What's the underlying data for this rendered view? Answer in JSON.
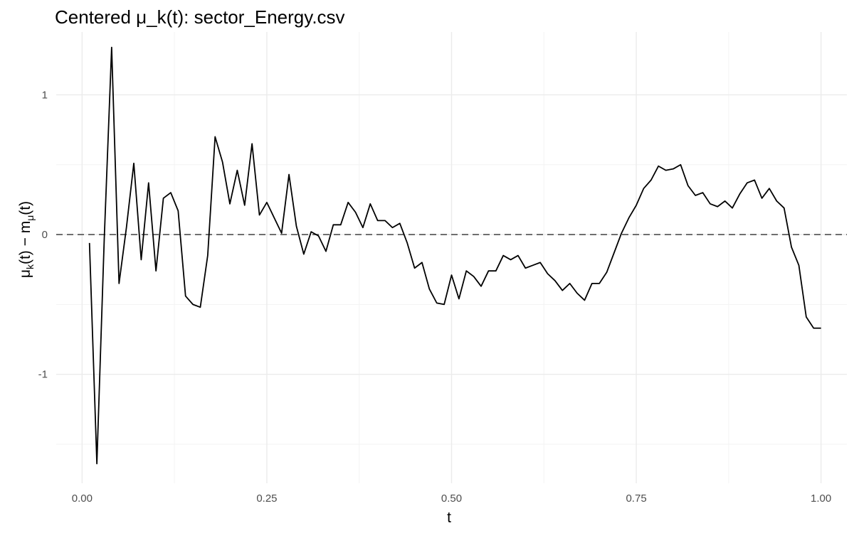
{
  "chart_data": {
    "type": "line",
    "title": "Centered μ_k(t): sector_Energy.csv",
    "xlabel": "t",
    "ylabel": "μk(t) − mμ(t)",
    "ylabel_parts": {
      "mu": "μ",
      "sub_k": "k",
      "mid": "(t) − m",
      "sub_mu": "μ",
      "end": "(t)"
    },
    "xlim": [
      -0.035,
      1.035
    ],
    "ylim": [
      -1.78,
      1.45
    ],
    "x_ticks": [
      0.0,
      0.25,
      0.5,
      0.75,
      1.0
    ],
    "x_tick_labels": [
      "0.00",
      "0.25",
      "0.50",
      "0.75",
      "1.00"
    ],
    "y_ticks": [
      -1,
      0,
      1
    ],
    "y_tick_labels": [
      "-1",
      "0",
      "1"
    ],
    "grid": true,
    "reference_line": {
      "y": 0,
      "style": "dashed",
      "color": "#666666"
    },
    "series": [
      {
        "color": "#000000",
        "x": [
          0.01,
          0.02,
          0.03,
          0.04,
          0.05,
          0.06,
          0.07,
          0.08,
          0.09,
          0.1,
          0.11,
          0.12,
          0.13,
          0.14,
          0.15,
          0.16,
          0.17,
          0.18,
          0.19,
          0.2,
          0.21,
          0.22,
          0.23,
          0.24,
          0.25,
          0.26,
          0.27,
          0.28,
          0.29,
          0.3,
          0.31,
          0.32,
          0.33,
          0.34,
          0.35,
          0.36,
          0.37,
          0.38,
          0.39,
          0.4,
          0.41,
          0.42,
          0.43,
          0.44,
          0.45,
          0.46,
          0.47,
          0.48,
          0.49,
          0.5,
          0.51,
          0.52,
          0.53,
          0.54,
          0.55,
          0.56,
          0.57,
          0.58,
          0.59,
          0.6,
          0.61,
          0.62,
          0.63,
          0.64,
          0.65,
          0.66,
          0.67,
          0.68,
          0.69,
          0.7,
          0.71,
          0.72,
          0.73,
          0.74,
          0.75,
          0.76,
          0.77,
          0.78,
          0.79,
          0.8,
          0.81,
          0.82,
          0.83,
          0.84,
          0.85,
          0.86,
          0.87,
          0.88,
          0.89,
          0.9,
          0.91,
          0.92,
          0.93,
          0.94,
          0.95,
          0.96,
          0.97,
          0.98,
          0.99,
          1.0
        ],
        "values": [
          -0.06,
          -1.64,
          -0.03,
          1.34,
          -0.35,
          0.05,
          0.51,
          -0.18,
          0.37,
          -0.26,
          0.26,
          0.3,
          0.17,
          -0.44,
          -0.5,
          -0.52,
          -0.15,
          0.7,
          0.52,
          0.22,
          0.46,
          0.21,
          0.65,
          0.14,
          0.23,
          0.12,
          0.01,
          0.43,
          0.06,
          -0.14,
          0.02,
          -0.01,
          -0.12,
          0.07,
          0.07,
          0.23,
          0.16,
          0.05,
          0.22,
          0.1,
          0.1,
          0.05,
          0.08,
          -0.06,
          -0.24,
          -0.2,
          -0.39,
          -0.49,
          -0.5,
          -0.29,
          -0.46,
          -0.26,
          -0.3,
          -0.37,
          -0.26,
          -0.26,
          -0.15,
          -0.18,
          -0.15,
          -0.24,
          -0.22,
          -0.2,
          -0.28,
          -0.33,
          -0.4,
          -0.35,
          -0.42,
          -0.47,
          -0.35,
          -0.35,
          -0.27,
          -0.13,
          0.01,
          0.12,
          0.21,
          0.33,
          0.39,
          0.49,
          0.46,
          0.47,
          0.5,
          0.35,
          0.28,
          0.3,
          0.22,
          0.2,
          0.24,
          0.19,
          0.29,
          0.37,
          0.39,
          0.26,
          0.33,
          0.24,
          0.19,
          -0.09,
          -0.22,
          -0.59,
          -0.67,
          -0.67
        ]
      }
    ]
  }
}
